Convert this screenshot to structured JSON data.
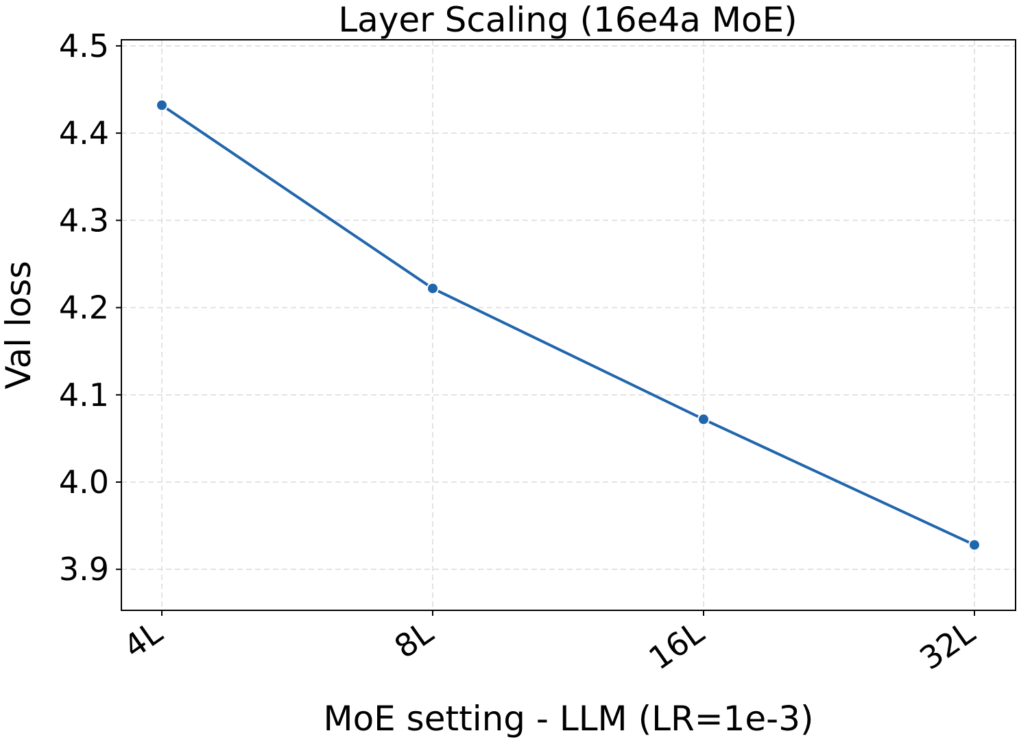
{
  "chart_data": {
    "type": "line",
    "title": "Layer Scaling (16e4a MoE)",
    "xlabel": "MoE setting - LLM (LR=1e-3)",
    "ylabel": "Val loss",
    "categories": [
      "4L",
      "8L",
      "16L",
      "32L"
    ],
    "series": [
      {
        "values": [
          4.432,
          4.222,
          4.072,
          3.928
        ]
      }
    ],
    "ylim": [
      3.853,
      4.507
    ],
    "yticks": [
      "3.9",
      "4.0",
      "4.1",
      "4.2",
      "4.3",
      "4.4",
      "4.5"
    ],
    "grid": true,
    "line_color": "#2166ac",
    "marker": "circle"
  }
}
